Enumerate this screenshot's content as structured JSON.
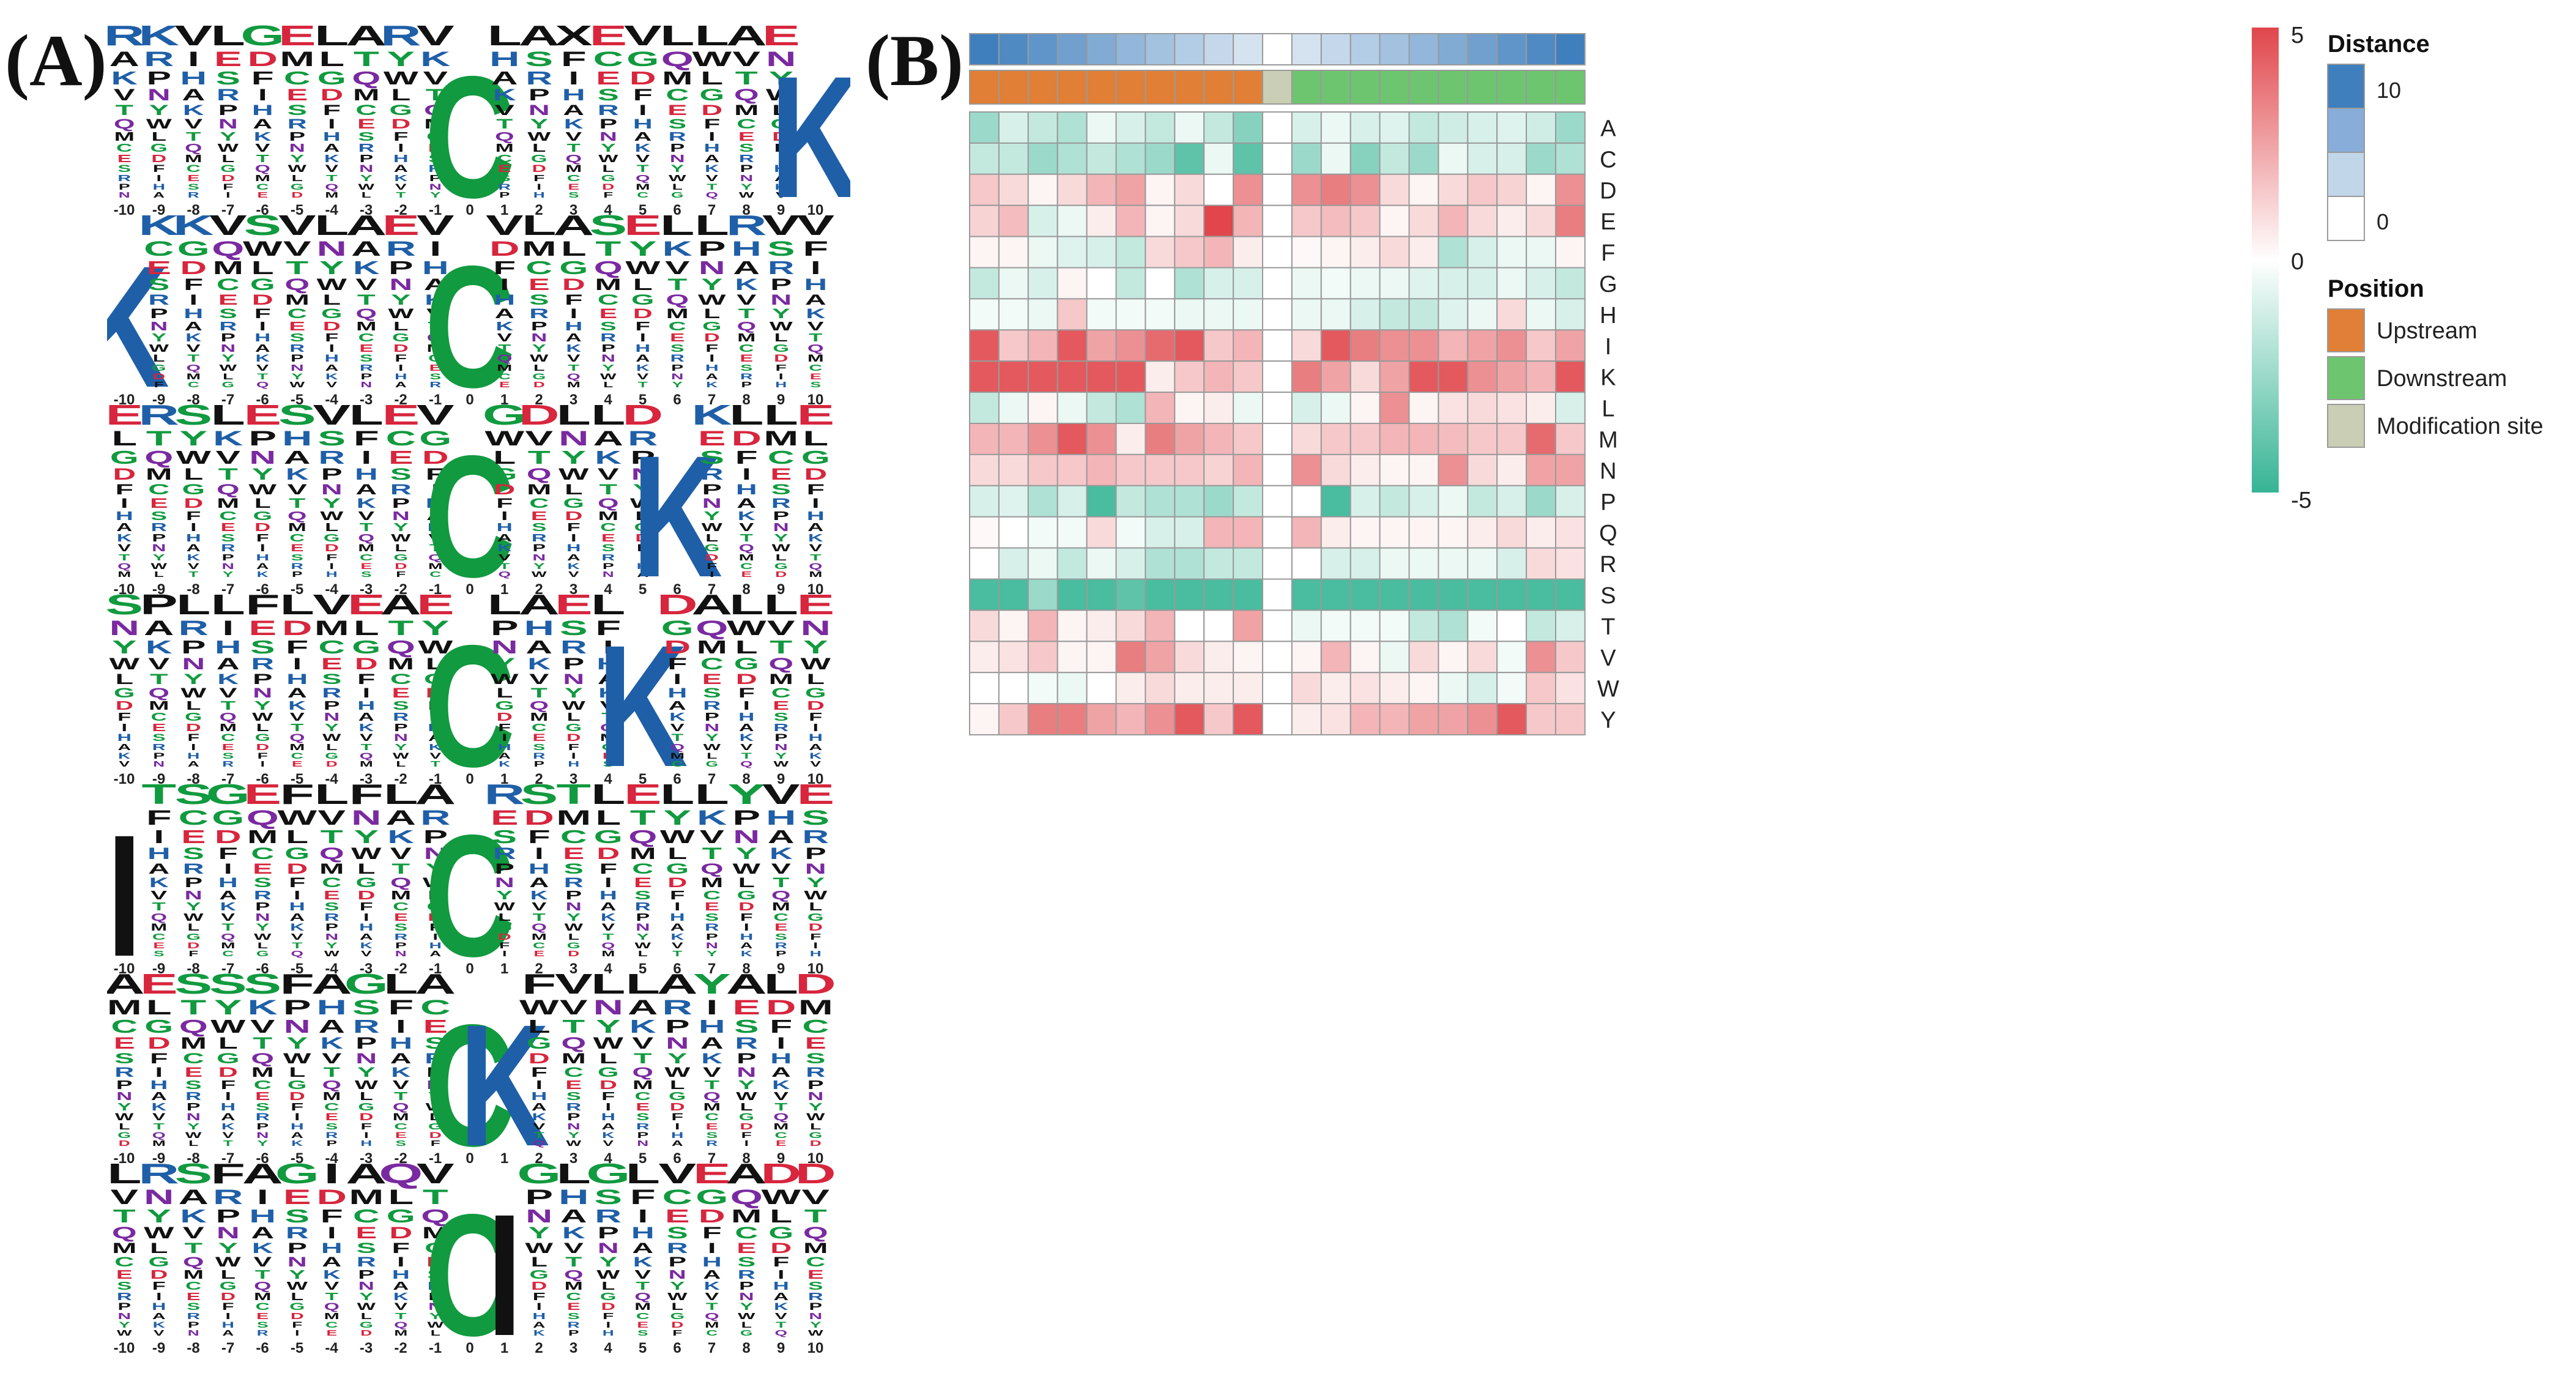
{
  "panel_labels": {
    "a": "(A)",
    "b": "(B)"
  },
  "chart_data": [
    {
      "type": "sequence_logo",
      "panel": "(A)",
      "positions": [
        "-10",
        "-9",
        "-8",
        "-7",
        "-6",
        "-5",
        "-4",
        "-3",
        "-2",
        "-1",
        "0",
        "1",
        "2",
        "3",
        "4",
        "5",
        "6",
        "7",
        "8",
        "9",
        "10"
      ],
      "logos": [
        {
          "top_residues": [
            "R",
            "K",
            "V",
            "L",
            "G",
            "E",
            "L",
            "A",
            "R",
            "V",
            "C",
            "L",
            "A",
            "X",
            "E",
            "V",
            "L",
            "L",
            "A",
            "E",
            "K"
          ],
          "dominant": [
            {
              "position": "0",
              "residue": "C"
            },
            {
              "position": "10",
              "residue": "K"
            }
          ]
        },
        {
          "top_residues": [
            "K",
            "K",
            "K",
            "V",
            "S",
            "V",
            "L",
            "A",
            "E",
            "V",
            "C",
            "V",
            "L",
            "A",
            "S",
            "E",
            "L",
            "L",
            "R",
            "V",
            "V"
          ],
          "dominant": [
            {
              "position": "-10",
              "residue": "K"
            },
            {
              "position": "0",
              "residue": "C"
            }
          ]
        },
        {
          "top_residues": [
            "E",
            "R",
            "S",
            "L",
            "E",
            "S",
            "V",
            "L",
            "E",
            "V",
            "C",
            "G",
            "D",
            "L",
            "L",
            "D",
            "K",
            "K",
            "L",
            "L",
            "E"
          ],
          "dominant": [
            {
              "position": "0",
              "residue": "C"
            },
            {
              "position": "6",
              "residue": "K"
            }
          ]
        },
        {
          "top_residues": [
            "S",
            "P",
            "L",
            "L",
            "F",
            "L",
            "V",
            "E",
            "A",
            "E",
            "C",
            "L",
            "A",
            "E",
            "L",
            "K",
            "D",
            "A",
            "L",
            "L",
            "E"
          ],
          "dominant": [
            {
              "position": "0",
              "residue": "C"
            },
            {
              "position": "5",
              "residue": "K"
            }
          ]
        },
        {
          "top_residues": [
            "I",
            "T",
            "S",
            "G",
            "E",
            "F",
            "L",
            "F",
            "L",
            "A",
            "C",
            "R",
            "S",
            "T",
            "L",
            "E",
            "L",
            "L",
            "Y",
            "V",
            "E"
          ],
          "dominant": [
            {
              "position": "-10",
              "residue": "I"
            },
            {
              "position": "0",
              "residue": "C"
            }
          ]
        },
        {
          "top_residues": [
            "A",
            "E",
            "S",
            "S",
            "S",
            "F",
            "A",
            "G",
            "L",
            "A",
            "C",
            "K",
            "F",
            "V",
            "L",
            "L",
            "A",
            "Y",
            "A",
            "L",
            "D"
          ],
          "dominant": [
            {
              "position": "0",
              "residue": "C"
            },
            {
              "position": "1",
              "residue": "K"
            }
          ]
        },
        {
          "top_residues": [
            "L",
            "R",
            "S",
            "F",
            "A",
            "G",
            "I",
            "A",
            "Q",
            "V",
            "C",
            "I",
            "G",
            "L",
            "G",
            "L",
            "V",
            "E",
            "A",
            "D",
            "D"
          ],
          "dominant": [
            {
              "position": "0",
              "residue": "C"
            },
            {
              "position": "1",
              "residue": "I"
            }
          ]
        }
      ]
    },
    {
      "type": "heatmap",
      "panel": "(B)",
      "rows": [
        "A",
        "C",
        "D",
        "E",
        "F",
        "G",
        "H",
        "I",
        "K",
        "L",
        "M",
        "N",
        "P",
        "Q",
        "R",
        "S",
        "T",
        "V",
        "W",
        "Y"
      ],
      "position_annotation": [
        "Upstream",
        "Upstream",
        "Upstream",
        "Upstream",
        "Upstream",
        "Upstream",
        "Upstream",
        "Upstream",
        "Upstream",
        "Upstream",
        "Modification site",
        "Downstream",
        "Downstream",
        "Downstream",
        "Downstream",
        "Downstream",
        "Downstream",
        "Downstream",
        "Downstream",
        "Downstream",
        "Downstream"
      ],
      "distance_annotation": [
        10,
        9,
        8,
        7,
        6,
        5,
        4,
        3,
        2,
        1,
        0,
        1,
        2,
        3,
        4,
        5,
        6,
        7,
        8,
        9,
        10
      ],
      "values": [
        [
          -2.5,
          -1,
          -1.5,
          -2,
          -0.5,
          -1,
          -1.5,
          -0.5,
          -1.5,
          -3,
          0,
          -1,
          -0.5,
          -1,
          -0.8,
          -1.5,
          -1.2,
          -1,
          -0.8,
          -1.2,
          -2.5
        ],
        [
          -1.5,
          -1.5,
          -2.5,
          -2,
          -1.5,
          -2,
          -2.5,
          -4,
          -0.5,
          -4,
          0,
          -2.5,
          -0.5,
          -3,
          -1.5,
          -2.5,
          -0.5,
          -1,
          -1,
          -2.5,
          -2
        ],
        [
          1.5,
          1,
          0.3,
          1,
          2,
          2.5,
          0.3,
          1,
          0,
          3,
          0,
          3,
          3.5,
          3,
          1,
          0.3,
          1,
          1.5,
          1.2,
          0.3,
          3
        ],
        [
          1.2,
          1.8,
          -1,
          -0.5,
          0.5,
          2,
          0.3,
          1,
          5,
          2,
          0,
          1.5,
          1.8,
          1.5,
          0.3,
          1,
          2,
          1,
          0.5,
          1,
          3.5
        ],
        [
          0.3,
          0.3,
          -0.5,
          -0.8,
          -1,
          -1.5,
          1,
          1.5,
          2,
          0.5,
          0,
          0.2,
          0.3,
          0.5,
          1,
          0.5,
          -2,
          -1,
          -0.5,
          -0.5,
          0.3
        ],
        [
          -1.5,
          -0.5,
          -1,
          0.3,
          0,
          -1.5,
          0,
          -2,
          -1,
          -1,
          0,
          -0.5,
          -0.3,
          -0.5,
          -0.5,
          -0.8,
          -1,
          -1,
          -0.5,
          -1,
          -1.5
        ],
        [
          -0.3,
          -0.3,
          -0.5,
          1.5,
          -0.3,
          -0.3,
          -0.3,
          -0.5,
          -0.5,
          -0.5,
          0,
          -0.5,
          -0.5,
          -1,
          -1.5,
          -1.5,
          -0.8,
          -0.5,
          1,
          -0.5,
          -1
        ],
        [
          4.5,
          1.5,
          2,
          4.5,
          2.5,
          3,
          4,
          4.5,
          1.5,
          2,
          0,
          1,
          4.5,
          3.5,
          3,
          3,
          2,
          2.5,
          3,
          1.5,
          2.5
        ],
        [
          4.5,
          4.5,
          4.5,
          4.5,
          4.5,
          4.5,
          0.5,
          1.5,
          2,
          1.5,
          0,
          3.5,
          2.5,
          1,
          2.5,
          4.5,
          4.5,
          3,
          2.5,
          2,
          4.5
        ],
        [
          -1.5,
          -0.5,
          0.3,
          -0.5,
          -1.5,
          -2,
          2,
          0.3,
          0.5,
          -0.5,
          0,
          -1,
          -0.5,
          0.3,
          3,
          0.3,
          0.8,
          1,
          0.8,
          0.5,
          -1
        ],
        [
          2,
          2,
          3,
          4.5,
          3,
          0.5,
          3.5,
          2.5,
          2,
          1.5,
          0,
          1,
          1.5,
          1.5,
          2,
          2,
          1.8,
          1.5,
          1.5,
          4,
          1.5
        ],
        [
          1,
          1,
          1.5,
          1.5,
          2,
          1.5,
          1.5,
          1.5,
          1.2,
          2,
          0,
          3,
          1,
          0.5,
          0.3,
          0.3,
          3,
          1,
          0.5,
          2.5,
          2.5
        ],
        [
          -1,
          -0.8,
          -2,
          -1,
          -4.5,
          -1.5,
          -2,
          -2,
          -2.5,
          -1.5,
          0,
          0,
          -4.5,
          -1,
          -1.5,
          -1,
          -0.5,
          -1.5,
          -1,
          -2.5,
          -1
        ],
        [
          0.2,
          0,
          -0.3,
          -0.3,
          1,
          -0.3,
          -1,
          -1,
          2,
          2,
          0,
          2,
          0.5,
          0.3,
          0.3,
          0.3,
          0.3,
          0.5,
          1,
          0.5,
          0.8
        ],
        [
          0,
          -1,
          -0.5,
          -1.5,
          -0.5,
          -1,
          -2,
          -2,
          -1.5,
          -1.5,
          0,
          0,
          -1,
          -1,
          -0.5,
          -0.5,
          -0.5,
          -0.5,
          -1,
          1,
          0.8
        ],
        [
          -4.5,
          -4.5,
          -2.5,
          -4.5,
          -4.5,
          -4,
          -4.5,
          -4.5,
          -4.5,
          -4.5,
          0,
          -4.5,
          -4.5,
          -4.5,
          -4.5,
          -4.5,
          -4.5,
          -4.5,
          -4.5,
          -4.5,
          -4.5
        ],
        [
          1,
          0.3,
          2,
          0.3,
          0.5,
          1,
          2,
          0,
          0,
          2.5,
          0,
          -0.5,
          -0.3,
          -0.3,
          -0.3,
          -1.5,
          -2,
          -0.3,
          0,
          -1.5,
          -1
        ],
        [
          0.5,
          0.8,
          1.5,
          0.3,
          0.3,
          3.5,
          2.5,
          1,
          0.5,
          0.3,
          0,
          0.3,
          2,
          0.3,
          -0.5,
          1,
          0.3,
          1,
          -0.3,
          3,
          1.5
        ],
        [
          0,
          0,
          -0.3,
          -0.5,
          0,
          0.5,
          1,
          0.5,
          0.5,
          0.5,
          0,
          1,
          0.5,
          0.8,
          0.5,
          0.3,
          -0.5,
          -1,
          -0.3,
          1.5,
          0.8
        ],
        [
          0.3,
          1.5,
          3.5,
          3.5,
          2.5,
          2,
          3,
          4.5,
          1.5,
          4.5,
          0,
          0.5,
          0.8,
          2,
          2,
          2.5,
          2.5,
          3,
          4.5,
          1.5,
          1.5
        ]
      ],
      "colorbar": {
        "ticks": [
          "5",
          "0",
          "-5"
        ],
        "colors": {
          "high": "#e0464b",
          "mid": "#ffffff",
          "low": "#36b494"
        }
      },
      "legend": {
        "distance": {
          "title": "Distance",
          "labels": [
            "10",
            "0"
          ],
          "colors": [
            "#3f7fbd",
            "#87add8",
            "#c2d6ea",
            "#ffffff"
          ]
        },
        "position": {
          "title": "Position",
          "items": [
            {
              "label": "Upstream",
              "color": "#e07f35"
            },
            {
              "label": "Downstream",
              "color": "#6dc56f"
            },
            {
              "label": "Modification site",
              "color": "#c9ceb4"
            }
          ]
        }
      }
    }
  ]
}
